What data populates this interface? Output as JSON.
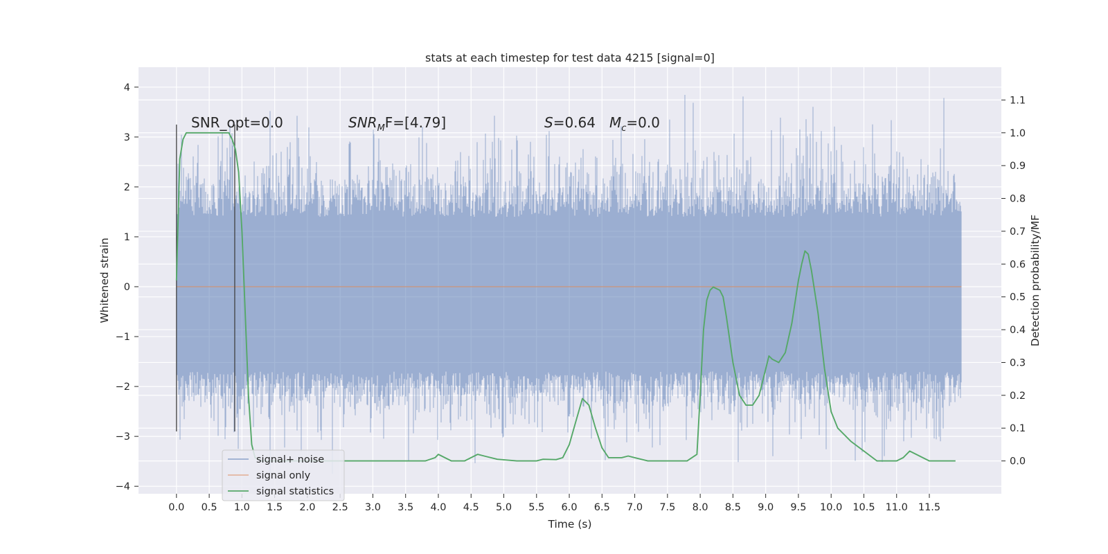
{
  "chart_data": {
    "type": "line",
    "title": "stats at each timestep for test data 4215 [signal=0]",
    "xlabel": "Time (s)",
    "ylabel": "Whitened strain",
    "y2label": "Detection probability/MF",
    "xlim": [
      -0.58,
      12.6
    ],
    "ylim": [
      -4.15,
      4.4
    ],
    "y2lim": [
      -0.1,
      1.2
    ],
    "grid": true,
    "legend_position": "lower-left",
    "x_ticks": [
      "0.0",
      "0.5",
      "1.0",
      "1.5",
      "2.0",
      "2.5",
      "3.0",
      "3.5",
      "4.0",
      "4.5",
      "5.0",
      "5.5",
      "6.0",
      "6.5",
      "7.0",
      "7.5",
      "8.0",
      "8.5",
      "9.0",
      "9.5",
      "10.0",
      "10.5",
      "11.0",
      "11.5"
    ],
    "y_ticks": [
      "4",
      "3",
      "2",
      "1",
      "0",
      "−1",
      "−2",
      "−3",
      "−4"
    ],
    "y2_ticks": [
      "1.1",
      "1.0",
      "0.9",
      "0.8",
      "0.7",
      "0.6",
      "0.5",
      "0.4",
      "0.3",
      "0.2",
      "0.1",
      "0.0"
    ],
    "annotations": {
      "snr_opt": "SNR_opt=0.0",
      "snr_mf": "SNR",
      "snr_mf_sub": "M",
      "snr_mf_rest": "F=[4.79]",
      "s_stat": "S",
      "s_stat_rest": "=0.64",
      "mc": "M",
      "mc_sub": "c",
      "mc_rest": "=0.0"
    },
    "legend": [
      "signal+ noise",
      "signal only",
      "signal statistics"
    ],
    "colors": {
      "signal_noise": "#4c72b0",
      "signal_only": "#dd8452",
      "signal_statistics": "#55a868",
      "background": "#eaeaf2",
      "grid": "#ffffff",
      "markers": "#404040"
    },
    "series": [
      {
        "name": "signal+ noise",
        "description_axis": "left",
        "x_range": [
          0.0,
          11.99
        ],
        "envelope_upper": 1.4,
        "envelope_lower": -1.7,
        "peak_max": 4.1,
        "peak_min": -3.75
      },
      {
        "name": "signal only",
        "axis": "left",
        "x": [
          0.0,
          11.99
        ],
        "y": [
          0.0,
          0.0
        ]
      },
      {
        "name": "signal statistics",
        "axis": "right",
        "x": [
          0.0,
          0.05,
          0.1,
          0.15,
          0.2,
          0.3,
          0.4,
          0.5,
          0.6,
          0.7,
          0.8,
          0.85,
          0.9,
          0.95,
          1.0,
          1.05,
          1.1,
          1.15,
          1.2,
          1.3,
          1.5,
          2.0,
          3.0,
          3.8,
          3.95,
          4.0,
          4.1,
          4.2,
          4.4,
          4.5,
          4.6,
          4.7,
          4.9,
          5.2,
          5.5,
          5.6,
          5.8,
          5.9,
          6.0,
          6.1,
          6.2,
          6.3,
          6.4,
          6.5,
          6.6,
          6.8,
          6.9,
          7.0,
          7.2,
          7.5,
          7.8,
          7.95,
          8.0,
          8.05,
          8.1,
          8.15,
          8.2,
          8.3,
          8.35,
          8.4,
          8.5,
          8.6,
          8.7,
          8.8,
          8.9,
          9.0,
          9.05,
          9.1,
          9.2,
          9.3,
          9.4,
          9.5,
          9.55,
          9.6,
          9.65,
          9.7,
          9.8,
          9.9,
          10.0,
          10.1,
          10.3,
          10.5,
          10.7,
          11.0,
          11.1,
          11.2,
          11.3,
          11.5,
          11.9
        ],
        "y": [
          0.55,
          0.92,
          0.98,
          1.0,
          1.0,
          1.0,
          1.0,
          1.0,
          1.0,
          1.0,
          1.0,
          0.98,
          0.95,
          0.88,
          0.7,
          0.45,
          0.2,
          0.05,
          0.01,
          0.0,
          0.0,
          0.0,
          0.0,
          0.0,
          0.01,
          0.02,
          0.01,
          0.0,
          0.0,
          0.01,
          0.02,
          0.015,
          0.005,
          0.0,
          0.0,
          0.005,
          0.004,
          0.01,
          0.05,
          0.12,
          0.19,
          0.17,
          0.1,
          0.04,
          0.01,
          0.01,
          0.015,
          0.01,
          0.0,
          0.0,
          0.0,
          0.02,
          0.2,
          0.4,
          0.49,
          0.52,
          0.53,
          0.52,
          0.5,
          0.44,
          0.3,
          0.2,
          0.17,
          0.17,
          0.2,
          0.28,
          0.32,
          0.31,
          0.3,
          0.33,
          0.42,
          0.55,
          0.6,
          0.64,
          0.63,
          0.58,
          0.45,
          0.28,
          0.15,
          0.1,
          0.06,
          0.03,
          0.0,
          0.0,
          0.01,
          0.03,
          0.02,
          0.0,
          0.0
        ]
      }
    ],
    "vertical_markers": [
      0.0,
      0.89
    ]
  }
}
